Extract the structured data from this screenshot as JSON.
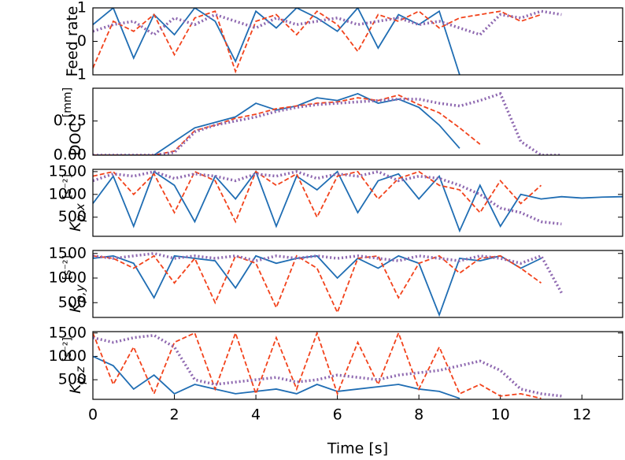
{
  "chart_data": [
    {
      "type": "line",
      "ylabel": "Feed rate",
      "xlim": [
        0,
        13
      ],
      "ylim": [
        -1,
        1
      ],
      "yticks": [
        {
          "value": -1,
          "label": "−1"
        },
        0,
        1
      ],
      "x": [
        0,
        0.5,
        1,
        1.5,
        2,
        2.5,
        3,
        3.5,
        4,
        4.5,
        5,
        5.5,
        6,
        6.5,
        7,
        7.5,
        8,
        8.5,
        9,
        9.5,
        10,
        10.5,
        11,
        11.5,
        12,
        12.5,
        13
      ],
      "series": [
        {
          "color": "#1f6db3",
          "style": "solid",
          "values": [
            0.5,
            1,
            -0.5,
            0.8,
            0.2,
            1,
            0.6,
            -0.6,
            0.9,
            0.4,
            1,
            0.7,
            0.3,
            1,
            -0.2,
            0.8,
            0.5,
            0.9,
            -1,
            null,
            null,
            null,
            null,
            null,
            null,
            null,
            null
          ]
        },
        {
          "color": "#f2421b",
          "style": "dashed",
          "values": [
            -0.8,
            0.6,
            0.3,
            0.8,
            -0.4,
            0.7,
            0.9,
            -0.9,
            0.6,
            0.8,
            0.2,
            0.9,
            0.5,
            -0.3,
            0.8,
            0.6,
            0.9,
            0.4,
            0.7,
            0.8,
            0.9,
            0.6,
            0.8,
            null,
            null,
            null,
            null
          ]
        },
        {
          "color": "#8e68b0",
          "style": "dotted",
          "values": [
            0.3,
            0.5,
            0.6,
            0.2,
            0.7,
            0.5,
            0.8,
            0.6,
            0.4,
            0.7,
            0.5,
            0.6,
            0.7,
            0.5,
            0.6,
            0.7,
            0.5,
            0.6,
            0.4,
            0.2,
            0.8,
            0.7,
            0.9,
            0.8,
            null,
            null,
            null
          ]
        }
      ]
    },
    {
      "type": "line",
      "ylabel": "DOC",
      "ylabel_unit": "[mm]",
      "xlim": [
        0,
        13
      ],
      "ylim": [
        0,
        0.49
      ],
      "yticks": [
        {
          "value": 0,
          "label": "0.00"
        },
        {
          "value": 0.25,
          "label": "0.25"
        }
      ],
      "x": [
        0,
        0.5,
        1,
        1.5,
        2,
        2.5,
        3,
        3.5,
        4,
        4.5,
        5,
        5.5,
        6,
        6.5,
        7,
        7.5,
        8,
        8.5,
        9,
        9.5,
        10,
        10.5,
        11,
        11.5,
        12,
        12.5,
        13
      ],
      "series": [
        {
          "color": "#1f6db3",
          "style": "solid",
          "values": [
            0,
            0,
            0,
            0,
            0.1,
            0.2,
            0.24,
            0.28,
            0.38,
            0.33,
            0.36,
            0.42,
            0.4,
            0.45,
            0.38,
            0.41,
            0.35,
            0.22,
            0.05,
            null,
            null,
            null,
            null,
            null,
            null,
            null,
            null
          ]
        },
        {
          "color": "#f2421b",
          "style": "dashed",
          "values": [
            0,
            0,
            0,
            0,
            0.03,
            0.18,
            0.22,
            0.27,
            0.3,
            0.34,
            0.36,
            0.38,
            0.39,
            0.42,
            0.4,
            0.44,
            0.37,
            0.31,
            0.2,
            0.08,
            null,
            null,
            null,
            null,
            null,
            null,
            null
          ]
        },
        {
          "color": "#8e68b0",
          "style": "dotted",
          "values": [
            0,
            0,
            0,
            0,
            0.02,
            0.17,
            0.22,
            0.25,
            0.28,
            0.32,
            0.35,
            0.37,
            0.38,
            0.39,
            0.4,
            0.41,
            0.41,
            0.38,
            0.36,
            0.4,
            0.45,
            0.1,
            0,
            0,
            null,
            null,
            null
          ]
        }
      ]
    },
    {
      "type": "line",
      "ylabel": "K",
      "ylabel_sub": "p,x",
      "ylabel_unit": "[s⁻²]",
      "xlim": [
        0,
        13
      ],
      "ylim": [
        80,
        1550
      ],
      "yticks": [
        500,
        1000,
        1500
      ],
      "x": [
        0,
        0.5,
        1,
        1.5,
        2,
        2.5,
        3,
        3.5,
        4,
        4.5,
        5,
        5.5,
        6,
        6.5,
        7,
        7.5,
        8,
        8.5,
        9,
        9.5,
        10,
        10.5,
        11,
        11.5,
        12,
        12.5,
        13
      ],
      "series": [
        {
          "color": "#1f6db3",
          "style": "solid",
          "values": [
            800,
            1400,
            300,
            1500,
            1200,
            400,
            1400,
            900,
            1500,
            300,
            1400,
            1100,
            1500,
            600,
            1300,
            1450,
            900,
            1400,
            200,
            1200,
            300,
            1000,
            900,
            950,
            920,
            940,
            950
          ]
        },
        {
          "color": "#f2421b",
          "style": "dashed",
          "values": [
            1400,
            1500,
            1000,
            1450,
            600,
            1500,
            1300,
            400,
            1500,
            1200,
            1450,
            500,
            1400,
            1500,
            900,
            1350,
            1500,
            1200,
            1100,
            600,
            1300,
            800,
            1200,
            null,
            null,
            null,
            null
          ]
        },
        {
          "color": "#8e68b0",
          "style": "dotted",
          "values": [
            1300,
            1450,
            1400,
            1500,
            1350,
            1450,
            1400,
            1300,
            1450,
            1400,
            1500,
            1350,
            1450,
            1400,
            1500,
            1300,
            1400,
            1350,
            1200,
            1000,
            700,
            600,
            400,
            350,
            null,
            null,
            null
          ]
        }
      ]
    },
    {
      "type": "line",
      "ylabel": "K",
      "ylabel_sub": "p,y",
      "ylabel_unit": "[s⁻²]",
      "xlim": [
        0,
        13
      ],
      "ylim": [
        200,
        1560
      ],
      "yticks": [
        500,
        1000,
        1500
      ],
      "x": [
        0,
        0.5,
        1,
        1.5,
        2,
        2.5,
        3,
        3.5,
        4,
        4.5,
        5,
        5.5,
        6,
        6.5,
        7,
        7.5,
        8,
        8.5,
        9,
        9.5,
        10,
        10.5,
        11,
        11.5,
        12,
        12.5,
        13
      ],
      "series": [
        {
          "color": "#1f6db3",
          "style": "solid",
          "values": [
            1400,
            1450,
            1300,
            600,
            1450,
            1400,
            1350,
            800,
            1450,
            1300,
            1400,
            1450,
            1000,
            1400,
            1200,
            1450,
            1300,
            250,
            1400,
            1350,
            1450,
            1200,
            1400,
            null,
            null,
            null,
            null
          ]
        },
        {
          "color": "#f2421b",
          "style": "dashed",
          "values": [
            1450,
            1400,
            1200,
            1450,
            900,
            1400,
            500,
            1450,
            1300,
            400,
            1450,
            1200,
            300,
            1400,
            1450,
            600,
            1300,
            1450,
            1100,
            1400,
            1450,
            1200,
            900,
            null,
            null,
            null,
            null
          ]
        },
        {
          "color": "#8e68b0",
          "style": "dotted",
          "values": [
            1450,
            1400,
            1450,
            1500,
            1400,
            1450,
            1400,
            1450,
            1350,
            1450,
            1400,
            1450,
            1400,
            1450,
            1400,
            1350,
            1450,
            1400,
            1350,
            1450,
            1400,
            1300,
            1450,
            700,
            null,
            null,
            null
          ]
        }
      ]
    },
    {
      "type": "line",
      "ylabel": "K",
      "ylabel_sub": "p,z",
      "ylabel_unit": "[s⁻²]",
      "xlabel": "Time [s]",
      "xlim": [
        0,
        13
      ],
      "ylim": [
        80,
        1530
      ],
      "yticks": [
        500,
        1000,
        1500
      ],
      "xticks": [
        0,
        2,
        4,
        6,
        8,
        10,
        12
      ],
      "x": [
        0,
        0.5,
        1,
        1.5,
        2,
        2.5,
        3,
        3.5,
        4,
        4.5,
        5,
        5.5,
        6,
        6.5,
        7,
        7.5,
        8,
        8.5,
        9,
        9.5,
        10,
        10.5,
        11,
        11.5,
        12,
        12.5,
        13
      ],
      "series": [
        {
          "color": "#1f6db3",
          "style": "solid",
          "values": [
            1000,
            800,
            300,
            600,
            200,
            400,
            300,
            200,
            250,
            300,
            200,
            400,
            250,
            300,
            350,
            400,
            300,
            250,
            100,
            null,
            null,
            null,
            null,
            null,
            null,
            null,
            null
          ]
        },
        {
          "color": "#f2421b",
          "style": "dashed",
          "values": [
            1500,
            400,
            1200,
            200,
            1300,
            1500,
            300,
            1500,
            200,
            1400,
            300,
            1500,
            200,
            1300,
            400,
            1500,
            300,
            1200,
            200,
            400,
            150,
            200,
            100,
            null,
            null,
            null,
            null
          ]
        },
        {
          "color": "#8e68b0",
          "style": "dotted",
          "values": [
            1400,
            1300,
            1400,
            1450,
            1200,
            500,
            400,
            450,
            500,
            550,
            450,
            500,
            600,
            550,
            500,
            600,
            650,
            700,
            800,
            900,
            700,
            300,
            200,
            150,
            null,
            null,
            null
          ]
        }
      ]
    }
  ]
}
